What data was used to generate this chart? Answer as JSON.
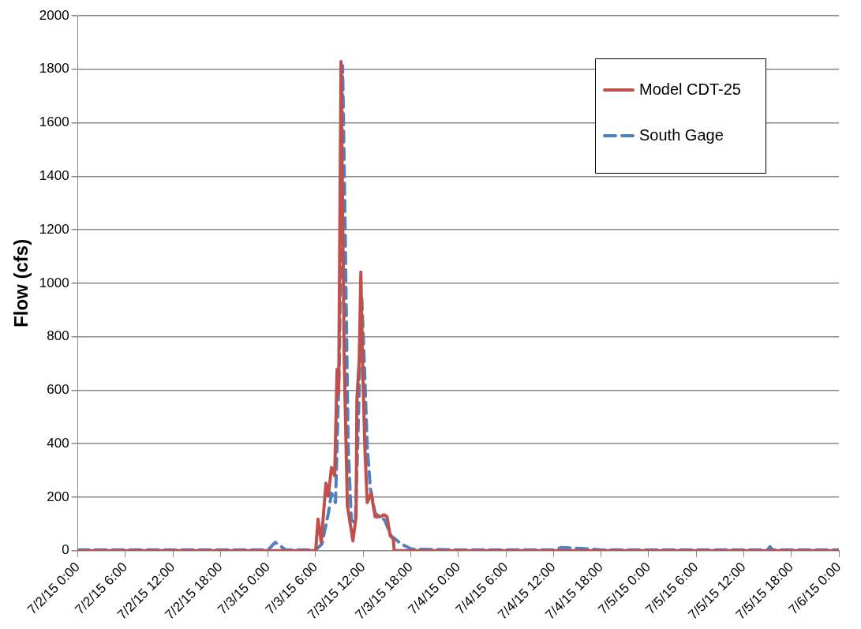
{
  "chart_data": {
    "type": "line",
    "ylabel": "Flow (cfs)",
    "legend": "top right",
    "grid": "y",
    "marker": "none",
    "xlim": [
      "--07-02T00:00",
      "--07-06T00:00"
    ],
    "xticks": [
      {
        "value": "--07-02T00:00",
        "label": "7/2/15 0:00"
      },
      {
        "value": "--07-02T06:00",
        "label": "7/2/15 6:00"
      },
      {
        "value": "--07-02T12:00",
        "label": "7/2/15 12:00"
      },
      {
        "value": "--07-02T18:00",
        "label": "7/2/15 18:00"
      },
      {
        "value": "--07-03T00:00",
        "label": "7/3/15 0:00"
      },
      {
        "value": "--07-03T06:00",
        "label": "7/3/15 6:00"
      },
      {
        "value": "--07-03T12:00",
        "label": "7/3/15 12:00"
      },
      {
        "value": "--07-03T18:00",
        "label": "7/3/15 18:00"
      },
      {
        "value": "--07-04T00:00",
        "label": "7/4/15 0:00"
      },
      {
        "value": "--07-04T06:00",
        "label": "7/4/15 6:00"
      },
      {
        "value": "--07-04T12:00",
        "label": "7/4/15 12:00"
      },
      {
        "value": "--07-04T18:00",
        "label": "7/4/15 18:00"
      },
      {
        "value": "--07-05T00:00",
        "label": "7/5/15 0:00"
      },
      {
        "value": "--07-05T06:00",
        "label": "7/5/15 6:00"
      },
      {
        "value": "--07-05T12:00",
        "label": "7/5/15 12:00"
      },
      {
        "value": "--07-05T18:00",
        "label": "7/5/15 18:00"
      },
      {
        "value": "--07-06T00:00",
        "label": "7/6/15 0:00"
      }
    ],
    "ylim": [
      0,
      2000
    ],
    "yticks": [
      0,
      200,
      400,
      600,
      800,
      1000,
      1200,
      1400,
      1600,
      1800,
      2000
    ],
    "series": [
      {
        "name": "Model CDT-25",
        "color": "#c0504d",
        "line_style": "solid",
        "x": [
          "--07-02T00:00",
          "--07-03T06:00",
          "--07-03T06:18",
          "--07-03T06:42",
          "--07-03T07:18",
          "--07-03T07:36",
          "--07-03T08:00",
          "--07-03T08:24",
          "--07-03T08:42",
          "--07-03T08:54",
          "--07-03T09:12",
          "--07-03T09:36",
          "--07-03T10:00",
          "--07-03T10:42",
          "--07-03T11:06",
          "--07-03T11:12",
          "--07-03T11:30",
          "--07-03T11:42",
          "--07-03T11:54",
          "--07-03T12:12",
          "--07-03T12:30",
          "--07-03T13:00",
          "--07-03T13:30",
          "--07-03T14:06",
          "--07-03T14:36",
          "--07-03T15:00",
          "--07-03T15:24",
          "--07-03T15:48",
          "--07-03T15:54",
          "--07-06T00:00"
        ],
        "values": [
          0,
          0,
          118,
          31,
          252,
          205,
          311,
          280,
          678,
          588,
          1829,
          718,
          168,
          37,
          127,
          563,
          718,
          1042,
          718,
          392,
          180,
          215,
          127,
          127,
          134,
          127,
          56,
          43,
          0,
          0
        ]
      },
      {
        "name": "South Gage",
        "color": "#4f81bd",
        "line_style": "dashed",
        "x": [
          "--07-02T00:00",
          "--07-03T00:00",
          "--07-03T00:54",
          "--07-03T02:12",
          "--07-03T06:00",
          "--07-03T06:48",
          "--07-03T07:36",
          "--07-03T08:00",
          "--07-03T08:30",
          "--07-03T09:00",
          "--07-03T09:24",
          "--07-03T09:42",
          "--07-03T10:06",
          "--07-03T10:30",
          "--07-03T11:00",
          "--07-03T11:18",
          "--07-03T11:48",
          "--07-03T12:12",
          "--07-03T12:30",
          "--07-03T12:54",
          "--07-03T13:30",
          "--07-03T14:42",
          "--07-03T15:30",
          "--07-03T16:48",
          "--07-03T18:06",
          "--07-04T00:00",
          "--07-04T12:00",
          "--07-04T13:00",
          "--07-04T15:30",
          "--07-04T18:00",
          "--07-05T12:00",
          "--07-05T15:00",
          "--07-05T15:18",
          "--07-05T15:36",
          "--07-06T00:00"
        ],
        "values": [
          3,
          3,
          31,
          3,
          3,
          25,
          140,
          215,
          180,
          718,
          1813,
          1244,
          392,
          115,
          103,
          392,
          955,
          653,
          392,
          233,
          140,
          115,
          56,
          25,
          6,
          3,
          3,
          12,
          8,
          3,
          3,
          3,
          15,
          3,
          3
        ]
      }
    ]
  }
}
